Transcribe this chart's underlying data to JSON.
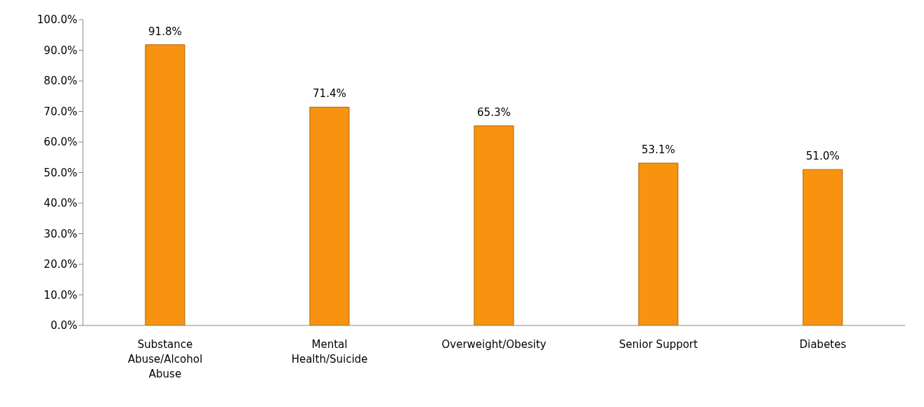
{
  "chart_data": {
    "type": "bar",
    "categories": [
      "Substance Abuse/Alcohol Abuse",
      "Mental Health/Suicide",
      "Overweight/Obesity",
      "Senior Support",
      "Diabetes"
    ],
    "values": [
      91.8,
      71.4,
      65.3,
      53.1,
      51.0
    ],
    "value_labels": [
      "91.8%",
      "71.4%",
      "65.3%",
      "53.1%",
      "51.0%"
    ],
    "color": "#f7930e",
    "ylim": [
      0,
      100
    ],
    "yticks": [
      {
        "value": 0,
        "label": "0.0%"
      },
      {
        "value": 10,
        "label": "10.0%"
      },
      {
        "value": 20,
        "label": "20.0%"
      },
      {
        "value": 30,
        "label": "30.0%"
      },
      {
        "value": 40,
        "label": "40.0%"
      },
      {
        "value": 50,
        "label": "50.0%"
      },
      {
        "value": 60,
        "label": "60.0%"
      },
      {
        "value": 70,
        "label": "70.0%"
      },
      {
        "value": 80,
        "label": "80.0%"
      },
      {
        "value": 90,
        "label": "90.0%"
      },
      {
        "value": 100,
        "label": "100.0%"
      }
    ],
    "grid": false,
    "legend": false
  }
}
